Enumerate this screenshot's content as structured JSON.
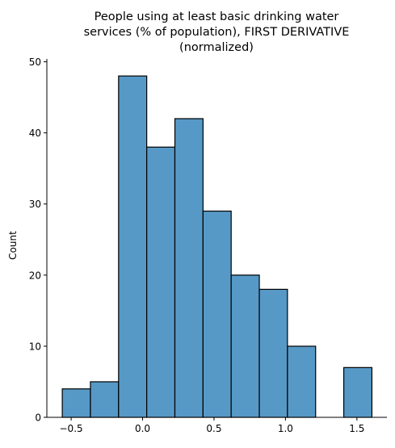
{
  "chart_data": {
    "type": "bar",
    "subtype": "histogram",
    "title_lines": [
      "People using at least basic drinking water",
      "services (% of population), FIRST DERIVATIVE",
      "(normalized)"
    ],
    "xlabel": "",
    "ylabel": "Count",
    "bin_edges": [
      -0.562,
      -0.365,
      -0.168,
      0.029,
      0.226,
      0.423,
      0.62,
      0.817,
      1.014,
      1.211,
      1.408,
      1.605
    ],
    "counts": [
      4,
      5,
      48,
      38,
      42,
      29,
      20,
      18,
      10,
      0,
      7
    ],
    "xlim": [
      -0.67,
      1.71
    ],
    "ylim": [
      0,
      50.4
    ],
    "x_ticks": [
      -0.5,
      0.0,
      0.5,
      1.0,
      1.5
    ],
    "x_tick_labels": [
      "−0.5",
      "0.0",
      "0.5",
      "1.0",
      "1.5"
    ],
    "y_ticks": [
      0,
      10,
      20,
      30,
      40,
      50
    ],
    "y_tick_labels": [
      "0",
      "10",
      "20",
      "30",
      "40",
      "50"
    ],
    "bar_color": "#5799c6",
    "bar_edge_color": "#000000",
    "grid": false,
    "legend": "none"
  }
}
